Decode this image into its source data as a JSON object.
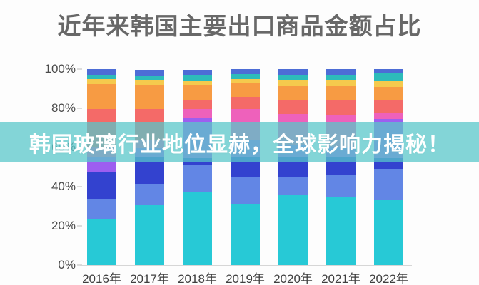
{
  "page": {
    "title": "近年来韩国主要出口商品金额占比"
  },
  "overlay": {
    "text": "韩国玻璃行业地位显赫，全球影响力揭秘！",
    "bg_color": "#58c7c9",
    "text_color": "#ffffff"
  },
  "chart_data": {
    "type": "bar",
    "subtype": "stacked-percent",
    "title": "近年来韩国主要出口商品金额占比",
    "xlabel": "",
    "ylabel": "",
    "ylim": [
      0,
      100
    ],
    "grid": false,
    "legend_position": "none",
    "y_tick_labels": [
      "100%",
      "80%",
      "60%",
      "40%",
      "20%",
      "0%"
    ],
    "y_tick_values": [
      100,
      80,
      60,
      40,
      20,
      0
    ],
    "categories": [
      "2016年",
      "2017年",
      "2018年",
      "2019年",
      "2020年",
      "2021年",
      "2022年"
    ],
    "series": [
      {
        "name": "segment-cyan",
        "color": "#27c9d6",
        "values": [
          23.5,
          30.5,
          37.5,
          31.0,
          36.0,
          35.0,
          33.0
        ]
      },
      {
        "name": "segment-cornflower",
        "color": "#6286e5",
        "values": [
          10.0,
          11.0,
          13.5,
          14.0,
          9.0,
          11.0,
          16.0
        ]
      },
      {
        "name": "segment-darkblue",
        "color": "#3342cf",
        "values": [
          14.0,
          13.5,
          3.5,
          10.0,
          10.0,
          9.0,
          5.5
        ]
      },
      {
        "name": "segment-purple",
        "color": "#9d5ef0",
        "values": [
          7.5,
          4.5,
          20.5,
          9.0,
          6.0,
          5.0,
          20.0
        ]
      },
      {
        "name": "segment-magenta",
        "color": "#ee61bb",
        "values": [
          5.0,
          4.5,
          4.5,
          15.5,
          16.0,
          16.5,
          3.5
        ]
      },
      {
        "name": "segment-salmon",
        "color": "#f46a68",
        "values": [
          19.5,
          15.5,
          4.5,
          6.5,
          7.0,
          7.5,
          6.5
        ]
      },
      {
        "name": "segment-orange",
        "color": "#f79b43",
        "values": [
          13.0,
          12.5,
          8.0,
          7.0,
          7.5,
          7.5,
          6.5
        ]
      },
      {
        "name": "segment-yellow",
        "color": "#f5ca4d",
        "values": [
          2.5,
          2.5,
          2.0,
          2.0,
          3.0,
          3.0,
          3.0
        ]
      },
      {
        "name": "segment-teal",
        "color": "#2dbcba",
        "values": [
          2.0,
          2.0,
          3.0,
          2.5,
          2.5,
          2.5,
          4.0
        ]
      },
      {
        "name": "segment-blue",
        "color": "#4d6dd6",
        "values": [
          3.0,
          3.0,
          2.5,
          2.5,
          3.0,
          3.0,
          2.0
        ]
      }
    ]
  }
}
